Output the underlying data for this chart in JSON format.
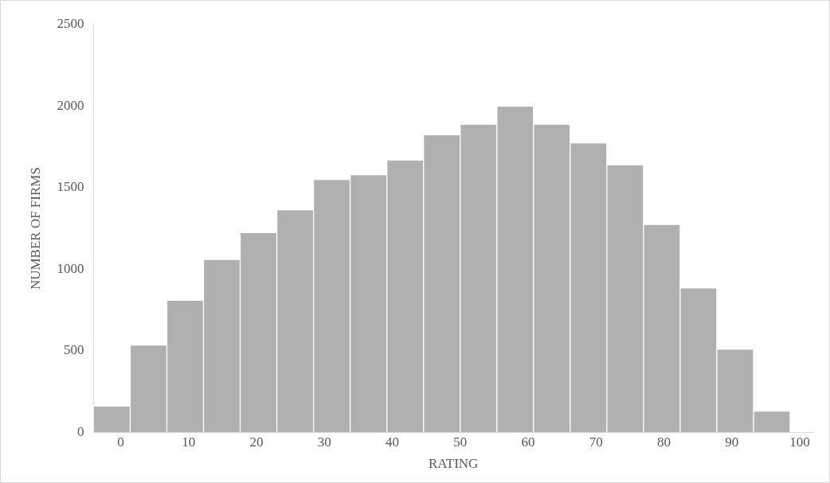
{
  "chart_data": {
    "type": "histogram",
    "xlabel": "RATING",
    "ylabel": "NUMBER OF FIRMS",
    "bins": [
      -4,
      1.4,
      6.8,
      12.2,
      17.6,
      23,
      28.4,
      33.8,
      39.2,
      44.6,
      50,
      55.4,
      60.8,
      66.2,
      71.6,
      77,
      82.4,
      87.8,
      93.2,
      98.6
    ],
    "values": [
      160,
      535,
      810,
      1060,
      1225,
      1365,
      1550,
      1580,
      1670,
      1825,
      1890,
      2000,
      1890,
      1775,
      1640,
      1275,
      885,
      510,
      130
    ],
    "color": "#b0b0b0",
    "xlim": [
      -4,
      102
    ],
    "xticks": [
      0,
      10,
      20,
      30,
      40,
      50,
      60,
      70,
      80,
      90,
      100
    ],
    "ylim": [
      0,
      2500
    ],
    "yticks": [
      0,
      500,
      1000,
      1500,
      2000,
      2500
    ],
    "grid": false,
    "legend": false
  }
}
